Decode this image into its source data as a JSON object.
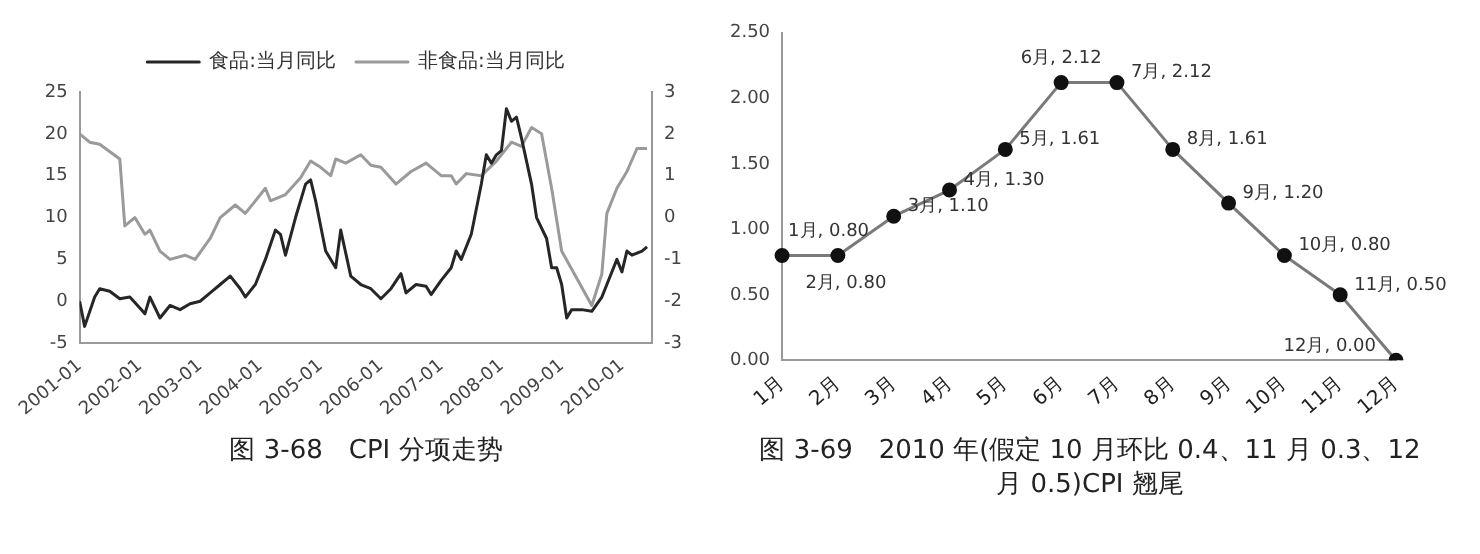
{
  "chart_data": [
    {
      "type": "line",
      "title": "图 3-68　CPI 分项走势",
      "legend": "top",
      "marker": "none",
      "xlim": [
        "2001-01",
        "2010-07"
      ],
      "xticks": [
        "2001-01",
        "2002-01",
        "2003-01",
        "2004-01",
        "2005-01",
        "2006-01",
        "2007-01",
        "2008-01",
        "2009-01",
        "2010-01"
      ],
      "ylim": [
        -5,
        25
      ],
      "yticks": [
        -5,
        0,
        5,
        10,
        15,
        20,
        25
      ],
      "y2lim": [
        -3,
        3
      ],
      "y2ticks": [
        -3,
        -2,
        -1,
        0,
        1,
        2,
        3
      ],
      "series": [
        {
          "name": "食品:当月同比",
          "color": "#262626",
          "x": [
            "2001-01",
            "2001-02",
            "2001-04",
            "2001-05",
            "2001-07",
            "2001-09",
            "2001-11",
            "2002-01",
            "2002-02",
            "2002-03",
            "2002-05",
            "2002-07",
            "2002-09",
            "2002-11",
            "2003-01",
            "2003-03",
            "2003-05",
            "2003-07",
            "2003-09",
            "2003-10",
            "2003-12",
            "2004-02",
            "2004-04",
            "2004-05",
            "2004-06",
            "2004-08",
            "2004-10",
            "2004-11",
            "2004-12",
            "2005-02",
            "2005-04",
            "2005-05",
            "2005-07",
            "2005-09",
            "2005-11",
            "2006-01",
            "2006-03",
            "2006-05",
            "2006-06",
            "2006-08",
            "2006-10",
            "2006-11",
            "2007-01",
            "2007-03",
            "2007-04",
            "2007-05",
            "2007-07",
            "2007-09",
            "2007-10",
            "2007-11",
            "2007-12",
            "2008-01",
            "2008-02",
            "2008-03",
            "2008-04",
            "2008-05",
            "2008-07",
            "2008-08",
            "2008-10",
            "2008-11",
            "2008-12",
            "2009-01",
            "2009-02",
            "2009-03",
            "2009-05",
            "2009-07",
            "2009-09",
            "2009-10",
            "2009-12",
            "2010-01",
            "2010-02",
            "2010-03",
            "2010-05",
            "2010-06"
          ],
          "values": [
            0,
            -3,
            0.5,
            1.5,
            1.2,
            0.3,
            0.5,
            -0.8,
            -1.5,
            0.5,
            -2,
            -0.5,
            -1,
            -0.3,
            0,
            1,
            2,
            3,
            1.5,
            0.5,
            2,
            5,
            8.5,
            8,
            5.5,
            10,
            14,
            14.5,
            12,
            6,
            4,
            8.5,
            3,
            2,
            1.5,
            0.3,
            1.5,
            3.3,
            1,
            2,
            1.8,
            0.8,
            2.5,
            4,
            6,
            5,
            8,
            14,
            17.5,
            16.5,
            17.5,
            18,
            23,
            21.5,
            22,
            19.5,
            14,
            10,
            7.5,
            4,
            4,
            2,
            -2,
            -1,
            -1,
            -1.2,
            0.5,
            2,
            5,
            3.5,
            6,
            5.5,
            6,
            6.5
          ]
        },
        {
          "name": "非食品:当月同比",
          "color": "#9a9a9a",
          "axis": "y2",
          "x": [
            "2001-01",
            "2001-03",
            "2001-05",
            "2001-09",
            "2001-10",
            "2001-12",
            "2002-02",
            "2002-03",
            "2002-05",
            "2002-07",
            "2002-10",
            "2002-12",
            "2003-03",
            "2003-05",
            "2003-08",
            "2003-10",
            "2003-12",
            "2004-02",
            "2004-03",
            "2004-06",
            "2004-09",
            "2004-11",
            "2005-01",
            "2005-03",
            "2005-04",
            "2005-06",
            "2005-09",
            "2005-11",
            "2006-01",
            "2006-04",
            "2006-07",
            "2006-10",
            "2007-01",
            "2007-03",
            "2007-04",
            "2007-06",
            "2007-09",
            "2007-12",
            "2008-03",
            "2008-05",
            "2008-07",
            "2008-09",
            "2008-11",
            "2009-01",
            "2009-04",
            "2009-07",
            "2009-09",
            "2009-10",
            "2009-12",
            "2010-02",
            "2010-04",
            "2010-06"
          ],
          "values": [
            2,
            1.8,
            1.75,
            1.4,
            -0.2,
            0,
            -0.4,
            -0.3,
            -0.8,
            -1,
            -0.9,
            -1,
            -0.5,
            0,
            0.3,
            0.1,
            0.4,
            0.7,
            0.4,
            0.55,
            0.95,
            1.35,
            1.2,
            1,
            1.4,
            1.3,
            1.5,
            1.25,
            1.2,
            0.8,
            1.1,
            1.3,
            1,
            1,
            0.8,
            1.05,
            1,
            1.35,
            1.8,
            1.7,
            2.15,
            2,
            0.7,
            -0.8,
            -1.45,
            -2.1,
            -1.35,
            0.1,
            0.7,
            1.1,
            1.65,
            1.65
          ]
        }
      ]
    },
    {
      "type": "line",
      "title": "图 3-69　2010 年(假定 10 月环比 0.4、11 月 0.3、12 月 0.5)CPI 翘尾",
      "marker": "circle",
      "categories": [
        "1月",
        "2月",
        "3月",
        "4月",
        "5月",
        "6月",
        "7月",
        "8月",
        "9月",
        "10月",
        "11月",
        "12月"
      ],
      "ylim": [
        0,
        2.5
      ],
      "yticks": [
        {
          "value": 0,
          "label": "0.00"
        },
        {
          "value": 0.5,
          "label": "0.50"
        },
        {
          "value": 1,
          "label": "1.00"
        },
        {
          "value": 1.5,
          "label": "1.50"
        },
        {
          "value": 2,
          "label": "2.00"
        },
        {
          "value": 2.5,
          "label": "2.50"
        }
      ],
      "series": [
        {
          "color": "#7a7a7a",
          "values": [
            0.8,
            0.8,
            1.1,
            1.3,
            1.61,
            2.12,
            2.12,
            1.61,
            1.2,
            0.8,
            0.5,
            0
          ],
          "value_labels": [
            "1月, 0.80",
            "2月, 0.80",
            "3月, 1.10",
            "4月, 1.30",
            "5月, 1.61",
            "6月, 2.12",
            "7月, 2.12",
            "8月, 1.61",
            "9月, 1.20",
            "10月, 0.80",
            "11月, 0.50",
            "12月, 0.00"
          ]
        }
      ]
    }
  ]
}
